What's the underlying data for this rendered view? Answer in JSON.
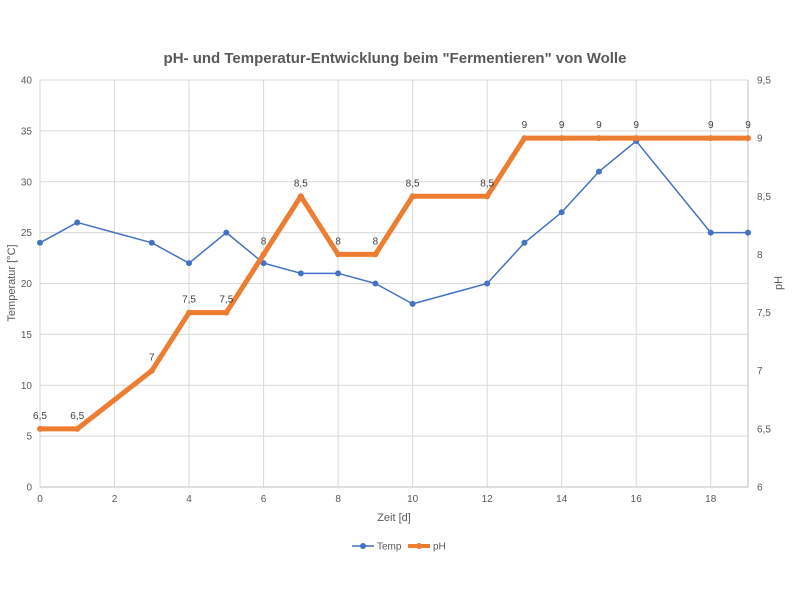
{
  "chart_data": {
    "type": "line",
    "title": "pH- und Temperatur-Entwicklung beim \"Fermentieren\" von Wolle",
    "xlabel": "Zeit [d]",
    "ylabel": "Temperatur [°C]",
    "y2label": "pH",
    "xlim": [
      0,
      19
    ],
    "ylim": [
      0,
      40
    ],
    "y2lim": [
      6,
      9.5
    ],
    "x_ticks": [
      0,
      2,
      4,
      6,
      8,
      10,
      12,
      14,
      16,
      18
    ],
    "x_tick_labels": [
      "0",
      "2",
      "4",
      "6",
      "8",
      "10",
      "12",
      "14",
      "16",
      "18"
    ],
    "y_ticks": [
      0,
      5,
      10,
      15,
      20,
      25,
      30,
      35,
      40
    ],
    "y_tick_labels": [
      "0",
      "5",
      "10",
      "15",
      "20",
      "25",
      "30",
      "35",
      "40"
    ],
    "y2_ticks": [
      6,
      6.5,
      7,
      7.5,
      8,
      8.5,
      9,
      9.5
    ],
    "y2_tick_labels": [
      "6",
      "6,5",
      "7",
      "7,5",
      "8",
      "8,5",
      "9",
      "9,5"
    ],
    "grid": true,
    "legend_position": "bottom",
    "series": [
      {
        "name": "Temp",
        "axis": "left",
        "color": "#4472c4",
        "x": [
          0,
          1,
          3,
          4,
          5,
          6,
          7,
          8,
          9,
          10,
          12,
          13,
          14,
          15,
          16,
          18,
          19
        ],
        "values": [
          24,
          26,
          24,
          22,
          25,
          22,
          21,
          21,
          20,
          18,
          20,
          24,
          27,
          31,
          34,
          25,
          25
        ]
      },
      {
        "name": "pH",
        "axis": "right",
        "color": "#ed7d31",
        "x": [
          0,
          1,
          3,
          4,
          5,
          6,
          7,
          8,
          9,
          10,
          12,
          13,
          14,
          15,
          16,
          18,
          19
        ],
        "values": [
          6.5,
          6.5,
          7,
          7.5,
          7.5,
          8,
          8.5,
          8,
          8,
          8.5,
          8.5,
          9,
          9,
          9,
          9,
          9,
          9
        ],
        "data_labels": [
          "6,5",
          "6,5",
          "7",
          "7,5",
          "7,5",
          "8",
          "8,5",
          "8",
          "8",
          "8,5",
          "8,5",
          "9",
          "9",
          "9",
          "9",
          "9",
          "9"
        ]
      }
    ]
  }
}
